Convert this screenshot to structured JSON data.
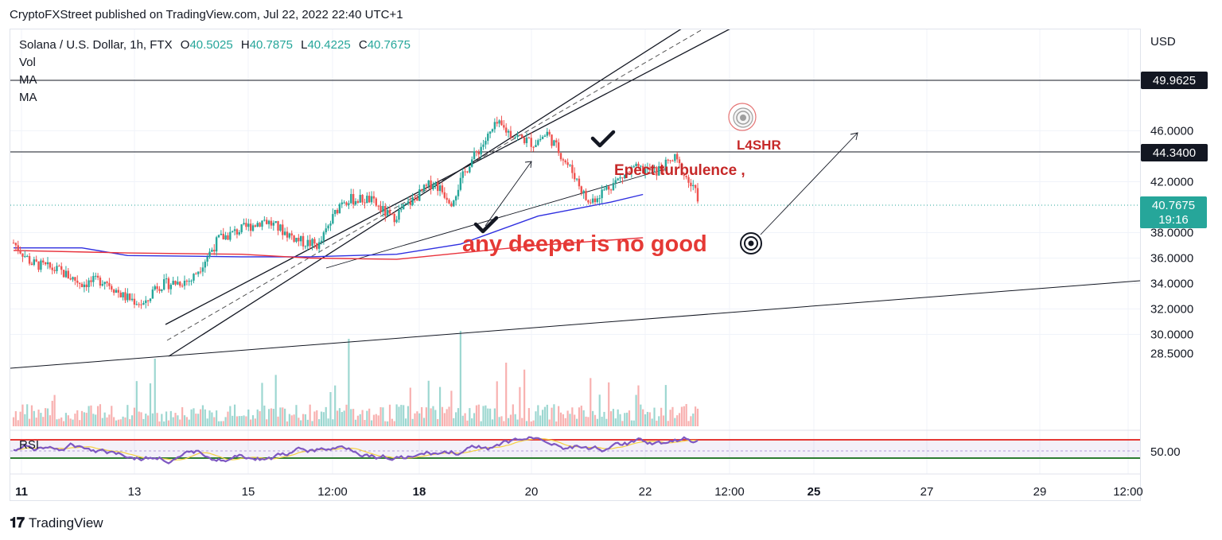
{
  "publisher_line": "CryptoFXStreet published on TradingView.com, Jul 22, 2022 22:40 UTC+1",
  "legend": {
    "symbol": "Solana / U.S. Dollar, 1h, FTX",
    "o_label": "O",
    "o_value": "40.5025",
    "h_label": "H",
    "h_value": "40.7875",
    "l_label": "L",
    "l_value": "40.4225",
    "c_label": "C",
    "c_value": "40.7675",
    "indicators": [
      "Vol",
      "MA",
      "MA"
    ]
  },
  "price_axis": {
    "currency": "USD",
    "ticks": [
      "46.0000",
      "42.0000",
      "38.0000",
      "36.0000",
      "34.0000",
      "32.0000",
      "30.0000",
      "28.5000"
    ],
    "badges": [
      {
        "label": "49.9625",
        "style": "dark"
      },
      {
        "label": "44.3400",
        "style": "dark"
      },
      {
        "label": "40.7675",
        "sub": "19:16",
        "style": "green"
      }
    ]
  },
  "time_axis": {
    "ticks": [
      "11",
      "13",
      "15",
      "12:00",
      "18",
      "20",
      "22",
      "12:00",
      "25",
      "27",
      "29",
      "12:00"
    ]
  },
  "annotations": {
    "expect": "Epect turbulence ,",
    "l4shr": "L4SHR",
    "warning": "any deeper is no good"
  },
  "rsi": {
    "label": "RSI",
    "tick": "50.00"
  },
  "brand": "TradingView",
  "colors": {
    "up": "#26a69a",
    "down": "#ef5350",
    "ma_blue": "#2f2fe0",
    "ma_red": "#e8323c",
    "rsi_line": "#7e57c2",
    "rsi_ma": "#f4d03f",
    "annotation_red": "#c62828",
    "warning_red": "#e53935"
  },
  "chart_data": {
    "type": "candlestick",
    "symbol": "SOLUSD",
    "interval": "1h",
    "y_range": [
      28.5,
      52.5
    ],
    "horizontal_levels": [
      49.9625,
      44.34
    ],
    "last_price": 40.7675,
    "anchors": [
      {
        "t": 0,
        "p": 37.2
      },
      {
        "t": 8,
        "p": 35.6
      },
      {
        "t": 20,
        "p": 35.0
      },
      {
        "t": 30,
        "p": 34.0
      },
      {
        "t": 40,
        "p": 34.3
      },
      {
        "t": 48,
        "p": 33.0
      },
      {
        "t": 58,
        "p": 32.3
      },
      {
        "t": 62,
        "p": 33.8
      },
      {
        "t": 78,
        "p": 34.3
      },
      {
        "t": 90,
        "p": 37.5
      },
      {
        "t": 110,
        "p": 39.0
      },
      {
        "t": 126,
        "p": 37.3
      },
      {
        "t": 134,
        "p": 37.0
      },
      {
        "t": 144,
        "p": 40.6
      },
      {
        "t": 156,
        "p": 40.6
      },
      {
        "t": 166,
        "p": 39.1
      },
      {
        "t": 184,
        "p": 42.0
      },
      {
        "t": 192,
        "p": 40.5
      },
      {
        "t": 200,
        "p": 43.5
      },
      {
        "t": 212,
        "p": 46.5
      },
      {
        "t": 218,
        "p": 45.8
      },
      {
        "t": 228,
        "p": 45.0
      },
      {
        "t": 234,
        "p": 45.8
      },
      {
        "t": 246,
        "p": 42.5
      },
      {
        "t": 252,
        "p": 40.3
      },
      {
        "t": 260,
        "p": 41.5
      },
      {
        "t": 272,
        "p": 43.0
      },
      {
        "t": 282,
        "p": 42.8
      },
      {
        "t": 290,
        "p": 43.8
      },
      {
        "t": 300,
        "p": 40.8
      }
    ],
    "ma_blue": [
      {
        "t": 0,
        "p": 36.8
      },
      {
        "t": 30,
        "p": 36.8
      },
      {
        "t": 50,
        "p": 36.2
      },
      {
        "t": 100,
        "p": 36.1
      },
      {
        "t": 130,
        "p": 36.1
      },
      {
        "t": 168,
        "p": 36.3
      },
      {
        "t": 196,
        "p": 37.1
      },
      {
        "t": 230,
        "p": 39.3
      },
      {
        "t": 262,
        "p": 40.4
      },
      {
        "t": 276,
        "p": 41.0
      }
    ],
    "ma_red": [
      {
        "t": 0,
        "p": 36.6
      },
      {
        "t": 50,
        "p": 36.4
      },
      {
        "t": 100,
        "p": 36.3
      },
      {
        "t": 130,
        "p": 36.0
      },
      {
        "t": 168,
        "p": 35.9
      },
      {
        "t": 196,
        "p": 36.4
      },
      {
        "t": 230,
        "p": 37.0
      },
      {
        "t": 276,
        "p": 37.6
      }
    ]
  }
}
